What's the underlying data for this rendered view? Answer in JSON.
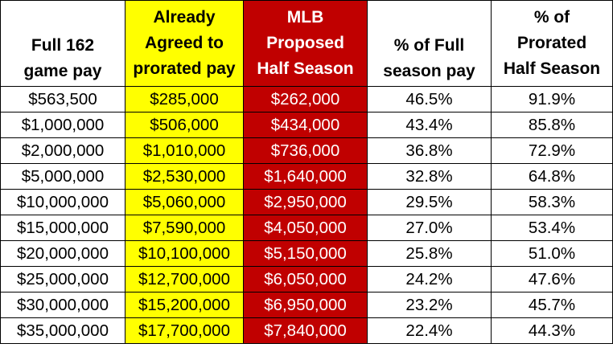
{
  "colors": {
    "yellow_column": "#ffff00",
    "red_column": "#c00000",
    "red_text": "#ffffff",
    "border": "#000000"
  },
  "table": {
    "headers": [
      [
        "Full 162",
        "game pay"
      ],
      [
        "Already",
        "Agreed to",
        "prorated pay"
      ],
      [
        "MLB",
        "Proposed",
        "Half Season"
      ],
      [
        "% of Full",
        "season pay"
      ],
      [
        "% of",
        "Prorated",
        "Half Season"
      ]
    ],
    "rows": [
      [
        "$563,500",
        "$285,000",
        "$262,000",
        "46.5%",
        "91.9%"
      ],
      [
        "$1,000,000",
        "$506,000",
        "$434,000",
        "43.4%",
        "85.8%"
      ],
      [
        "$2,000,000",
        "$1,010,000",
        "$736,000",
        "36.8%",
        "72.9%"
      ],
      [
        "$5,000,000",
        "$2,530,000",
        "$1,640,000",
        "32.8%",
        "64.8%"
      ],
      [
        "$10,000,000",
        "$5,060,000",
        "$2,950,000",
        "29.5%",
        "58.3%"
      ],
      [
        "$15,000,000",
        "$7,590,000",
        "$4,050,000",
        "27.0%",
        "53.4%"
      ],
      [
        "$20,000,000",
        "$10,100,000",
        "$5,150,000",
        "25.8%",
        "51.0%"
      ],
      [
        "$25,000,000",
        "$12,700,000",
        "$6,050,000",
        "24.2%",
        "47.6%"
      ],
      [
        "$30,000,000",
        "$15,200,000",
        "$6,950,000",
        "23.2%",
        "45.7%"
      ],
      [
        "$35,000,000",
        "$17,700,000",
        "$7,840,000",
        "22.4%",
        "44.3%"
      ]
    ]
  }
}
